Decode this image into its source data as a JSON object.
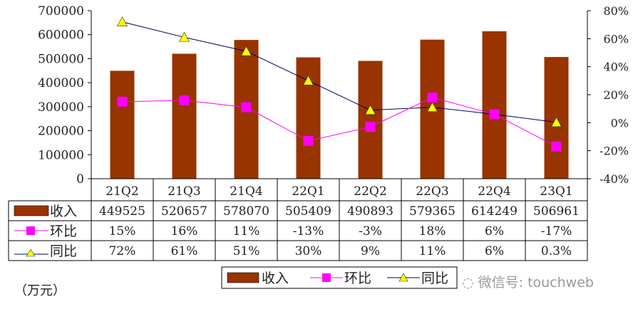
{
  "chart_data": {
    "type": "bar",
    "categories": [
      "21Q2",
      "21Q3",
      "21Q4",
      "22Q1",
      "22Q2",
      "22Q3",
      "22Q4",
      "23Q1"
    ],
    "series": [
      {
        "name": "收入",
        "type": "bar",
        "axis": "left",
        "color": "#993300",
        "values": [
          449525,
          520657,
          578070,
          505409,
          490893,
          579365,
          614249,
          506961
        ],
        "labels": [
          "449525",
          "520657",
          "578070",
          "505409",
          "490893",
          "579365",
          "614249",
          "506961"
        ]
      },
      {
        "name": "环比",
        "type": "line",
        "axis": "right",
        "color": "#FF00FF",
        "marker": "square",
        "values": [
          15,
          16,
          11,
          -13,
          -3,
          18,
          6,
          -17
        ],
        "labels": [
          "15%",
          "16%",
          "11%",
          "-13%",
          "-3%",
          "18%",
          "6%",
          "-17%"
        ]
      },
      {
        "name": "同比",
        "type": "line",
        "axis": "right",
        "color": "#000066",
        "marker": "triangle",
        "marker_color": "#FFFF00",
        "values": [
          72,
          61,
          51,
          30,
          9,
          11,
          6,
          0.3
        ],
        "labels": [
          "72%",
          "61%",
          "51%",
          "30%",
          "9%",
          "11%",
          "6%",
          "0.3%"
        ]
      }
    ],
    "y_left": {
      "range": [
        0,
        700000
      ],
      "ticks": [
        "0",
        "100000",
        "200000",
        "300000",
        "400000",
        "500000",
        "600000",
        "700000"
      ]
    },
    "y_right": {
      "range": [
        -40,
        80
      ],
      "ticks": [
        "-40%",
        "-20%",
        "0%",
        "20%",
        "40%",
        "60%",
        "80%"
      ]
    },
    "unit": "（万元）",
    "legend_position": "bottom",
    "grid": false
  },
  "watermark": "微信号: touchweb"
}
